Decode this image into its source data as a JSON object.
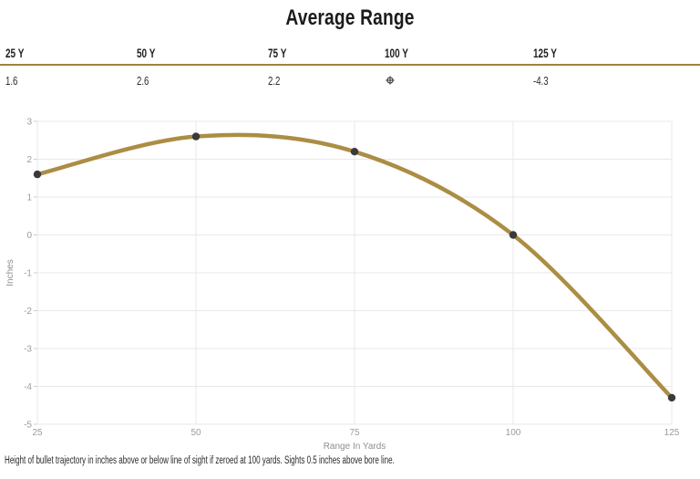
{
  "title": "Average Range",
  "stats": {
    "columns": [
      {
        "label": "25 Y",
        "value": "1.6"
      },
      {
        "label": "50 Y",
        "value": "2.6"
      },
      {
        "label": "75 Y",
        "value": "2.2"
      },
      {
        "label": "100 Y",
        "value": "",
        "zero_icon": "zero-crosshair-icon"
      },
      {
        "label": "125 Y",
        "value": "-4.3"
      }
    ]
  },
  "chart_data": {
    "type": "line",
    "title": "Average Range",
    "x": [
      25,
      50,
      75,
      100,
      125
    ],
    "series": [
      {
        "name": "Average Range",
        "values": [
          1.6,
          2.6,
          2.2,
          0,
          -4.3
        ]
      }
    ],
    "xlabel": "Range In Yards",
    "ylabel": "Inches",
    "xlim": [
      25,
      125
    ],
    "ylim": [
      -5,
      3
    ],
    "xticks": [
      25,
      50,
      75,
      100,
      125
    ],
    "yticks": [
      3,
      2,
      1,
      0,
      -1,
      -2,
      -3,
      -4,
      -5
    ],
    "grid": true,
    "legend": false,
    "line_color": "#ab8d44",
    "marker_color": "#3a3a3a"
  },
  "caption": "Height of bullet trajectory in inches above or below line of sight if zeroed at 100 yards. Sights 0.5 inches above bore line.",
  "colors": {
    "rule_gold": "#a08338",
    "grid": "#e9e9e9",
    "tick": "#cccccc",
    "axis_text": "#9b9b9b",
    "title_text": "#1b1b1b",
    "zero_icon": "#3c3c3c"
  }
}
